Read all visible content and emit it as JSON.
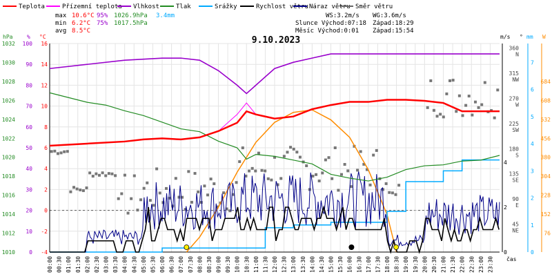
{
  "chart_data": {
    "type": "line",
    "title": "9.10.2023",
    "xlabel": "čas",
    "legend": [
      {
        "name": "Teplota",
        "color": "#ff0000"
      },
      {
        "name": "Přízemní teplota",
        "color": "#ff00ff"
      },
      {
        "name": "Vlhkost",
        "color": "#9900cc"
      },
      {
        "name": "Tlak",
        "color": "#228b22"
      },
      {
        "name": "Srážky",
        "color": "#00aaff"
      },
      {
        "name": "Rychlost větru",
        "color": "#000000"
      },
      {
        "name": "Náraz větru",
        "color": "#000088"
      },
      {
        "name": "Směr větru",
        "color": "#666666"
      }
    ],
    "stats": {
      "max_label": "max",
      "max_temp": "10.6°C",
      "max_hum": "95%",
      "max_press": "1026.9hPa",
      "precip": "3.4mm",
      "min_label": "min",
      "min_temp": "6.2°C",
      "min_hum": "75%",
      "min_press": "1017.5hPa",
      "avg_label": "avg",
      "avg_temp": "8.5°C"
    },
    "info": {
      "ws": "WS:3.2m/s",
      "wg": "WG:3.6m/s",
      "sun": "Slunce Východ:07:18",
      "sun_set": "Západ:18:29",
      "moon": "Měsíc  Východ:0:01",
      "moon_set": "Západ:15:54"
    },
    "x_ticks": [
      "00:00",
      "00:30",
      "01:00",
      "01:30",
      "02:00",
      "02:30",
      "03:00",
      "03:30",
      "04:00",
      "04:30",
      "05:00",
      "05:30",
      "06:00",
      "06:30",
      "07:00",
      "07:30",
      "08:00",
      "08:30",
      "09:00",
      "09:30",
      "10:00",
      "10:30",
      "11:00",
      "11:30",
      "12:00",
      "12:30",
      "13:00",
      "13:30",
      "14:00",
      "14:30",
      "15:00",
      "15:30",
      "16:00",
      "16:30",
      "17:00",
      "17:30",
      "18:00",
      "18:30",
      "19:00",
      "19:30",
      "20:00",
      "20:30",
      "21:00",
      "21:30",
      "22:00",
      "22:30",
      "23:00",
      "23:30"
    ],
    "axes": {
      "hpa_label": "hPa",
      "hpa_ticks": [
        "1010",
        "1012",
        "1014",
        "1016",
        "1018",
        "1020",
        "1022",
        "1024",
        "1026",
        "1028",
        "1030",
        "1032"
      ],
      "pct_label": "%",
      "pct_ticks": [
        "0",
        "10",
        "20",
        "30",
        "40",
        "50",
        "60",
        "70",
        "80",
        "90",
        "100"
      ],
      "c_label": "°C",
      "c_ticks": [
        "-4",
        "-2",
        "0",
        "2",
        "4",
        "6",
        "8",
        "10",
        "12",
        "14",
        "16"
      ],
      "ms_label": "m/s",
      "ms_ticks": [
        "0",
        "2",
        "4"
      ],
      "dir_label": "°",
      "dir_ticks": [
        "45 NE",
        "90 E",
        "135 SE",
        "180 S",
        "225 SW",
        "270 W",
        "315 NW",
        "360 N"
      ],
      "mm_label": "mm",
      "mm_ticks": [
        "0",
        "1",
        "2",
        "3",
        "4",
        "5",
        "6",
        "7"
      ],
      "w_label": "W",
      "w_ticks": [
        "76",
        "152",
        "228",
        "304",
        "380",
        "456",
        "532",
        "608",
        "684"
      ]
    },
    "series": {
      "temperature": {
        "t": [
          0,
          2,
          4,
          5,
          6,
          7,
          8,
          9,
          10,
          10.5,
          11,
          12,
          13,
          14,
          15,
          16,
          17,
          18,
          19,
          20,
          21,
          22,
          23,
          24
        ],
        "v": [
          6.2,
          6.4,
          6.6,
          6.8,
          6.9,
          6.8,
          7.0,
          7.6,
          8.4,
          9.5,
          9.2,
          8.8,
          9.0,
          9.7,
          10.1,
          10.4,
          10.4,
          10.6,
          10.6,
          10.5,
          10.3,
          9.5,
          9.5,
          9.5
        ]
      },
      "humidity": {
        "t": [
          0,
          2,
          4,
          6,
          7,
          8,
          9,
          10,
          10.5,
          11,
          12,
          13,
          14,
          15,
          16,
          17,
          18,
          19,
          20,
          21,
          22,
          23,
          24
        ],
        "v": [
          88,
          90,
          92,
          93,
          93,
          92,
          87,
          80,
          76,
          80,
          88,
          91,
          93,
          95,
          95,
          95,
          95,
          95,
          95,
          95,
          95,
          95,
          95
        ]
      },
      "pressure": {
        "t": [
          0,
          1,
          2,
          3,
          4,
          5,
          6,
          7,
          8,
          9,
          10,
          10.5,
          11,
          12,
          13,
          14,
          15,
          16,
          17,
          18,
          19,
          20,
          21,
          22,
          23,
          24
        ],
        "v": [
          1026.8,
          1026.3,
          1025.8,
          1025.5,
          1024.9,
          1024.4,
          1023.7,
          1023.0,
          1022.7,
          1021.7,
          1021.0,
          1019.8,
          1020.3,
          1020.1,
          1019.7,
          1019.3,
          1018.2,
          1017.8,
          1017.5,
          1017.9,
          1018.7,
          1019.1,
          1019.2,
          1019.6,
          1019.7,
          1020.2
        ]
      },
      "precipitation": {
        "t": [
          0,
          5.5,
          6,
          10.7,
          11.5,
          13,
          15,
          16,
          17,
          18,
          19,
          21,
          22,
          24
        ],
        "v": [
          0,
          0,
          0.15,
          0.15,
          0.9,
          1.0,
          1.1,
          1.1,
          1.1,
          1.5,
          2.6,
          3.0,
          3.4,
          3.4
        ]
      },
      "solar": {
        "t": [
          7.3,
          8,
          9,
          10,
          11,
          12,
          13,
          14,
          15,
          16,
          17,
          18,
          18.5
        ],
        "v": [
          0,
          60,
          180,
          320,
          440,
          520,
          560,
          570,
          530,
          460,
          330,
          150,
          0
        ]
      }
    }
  }
}
